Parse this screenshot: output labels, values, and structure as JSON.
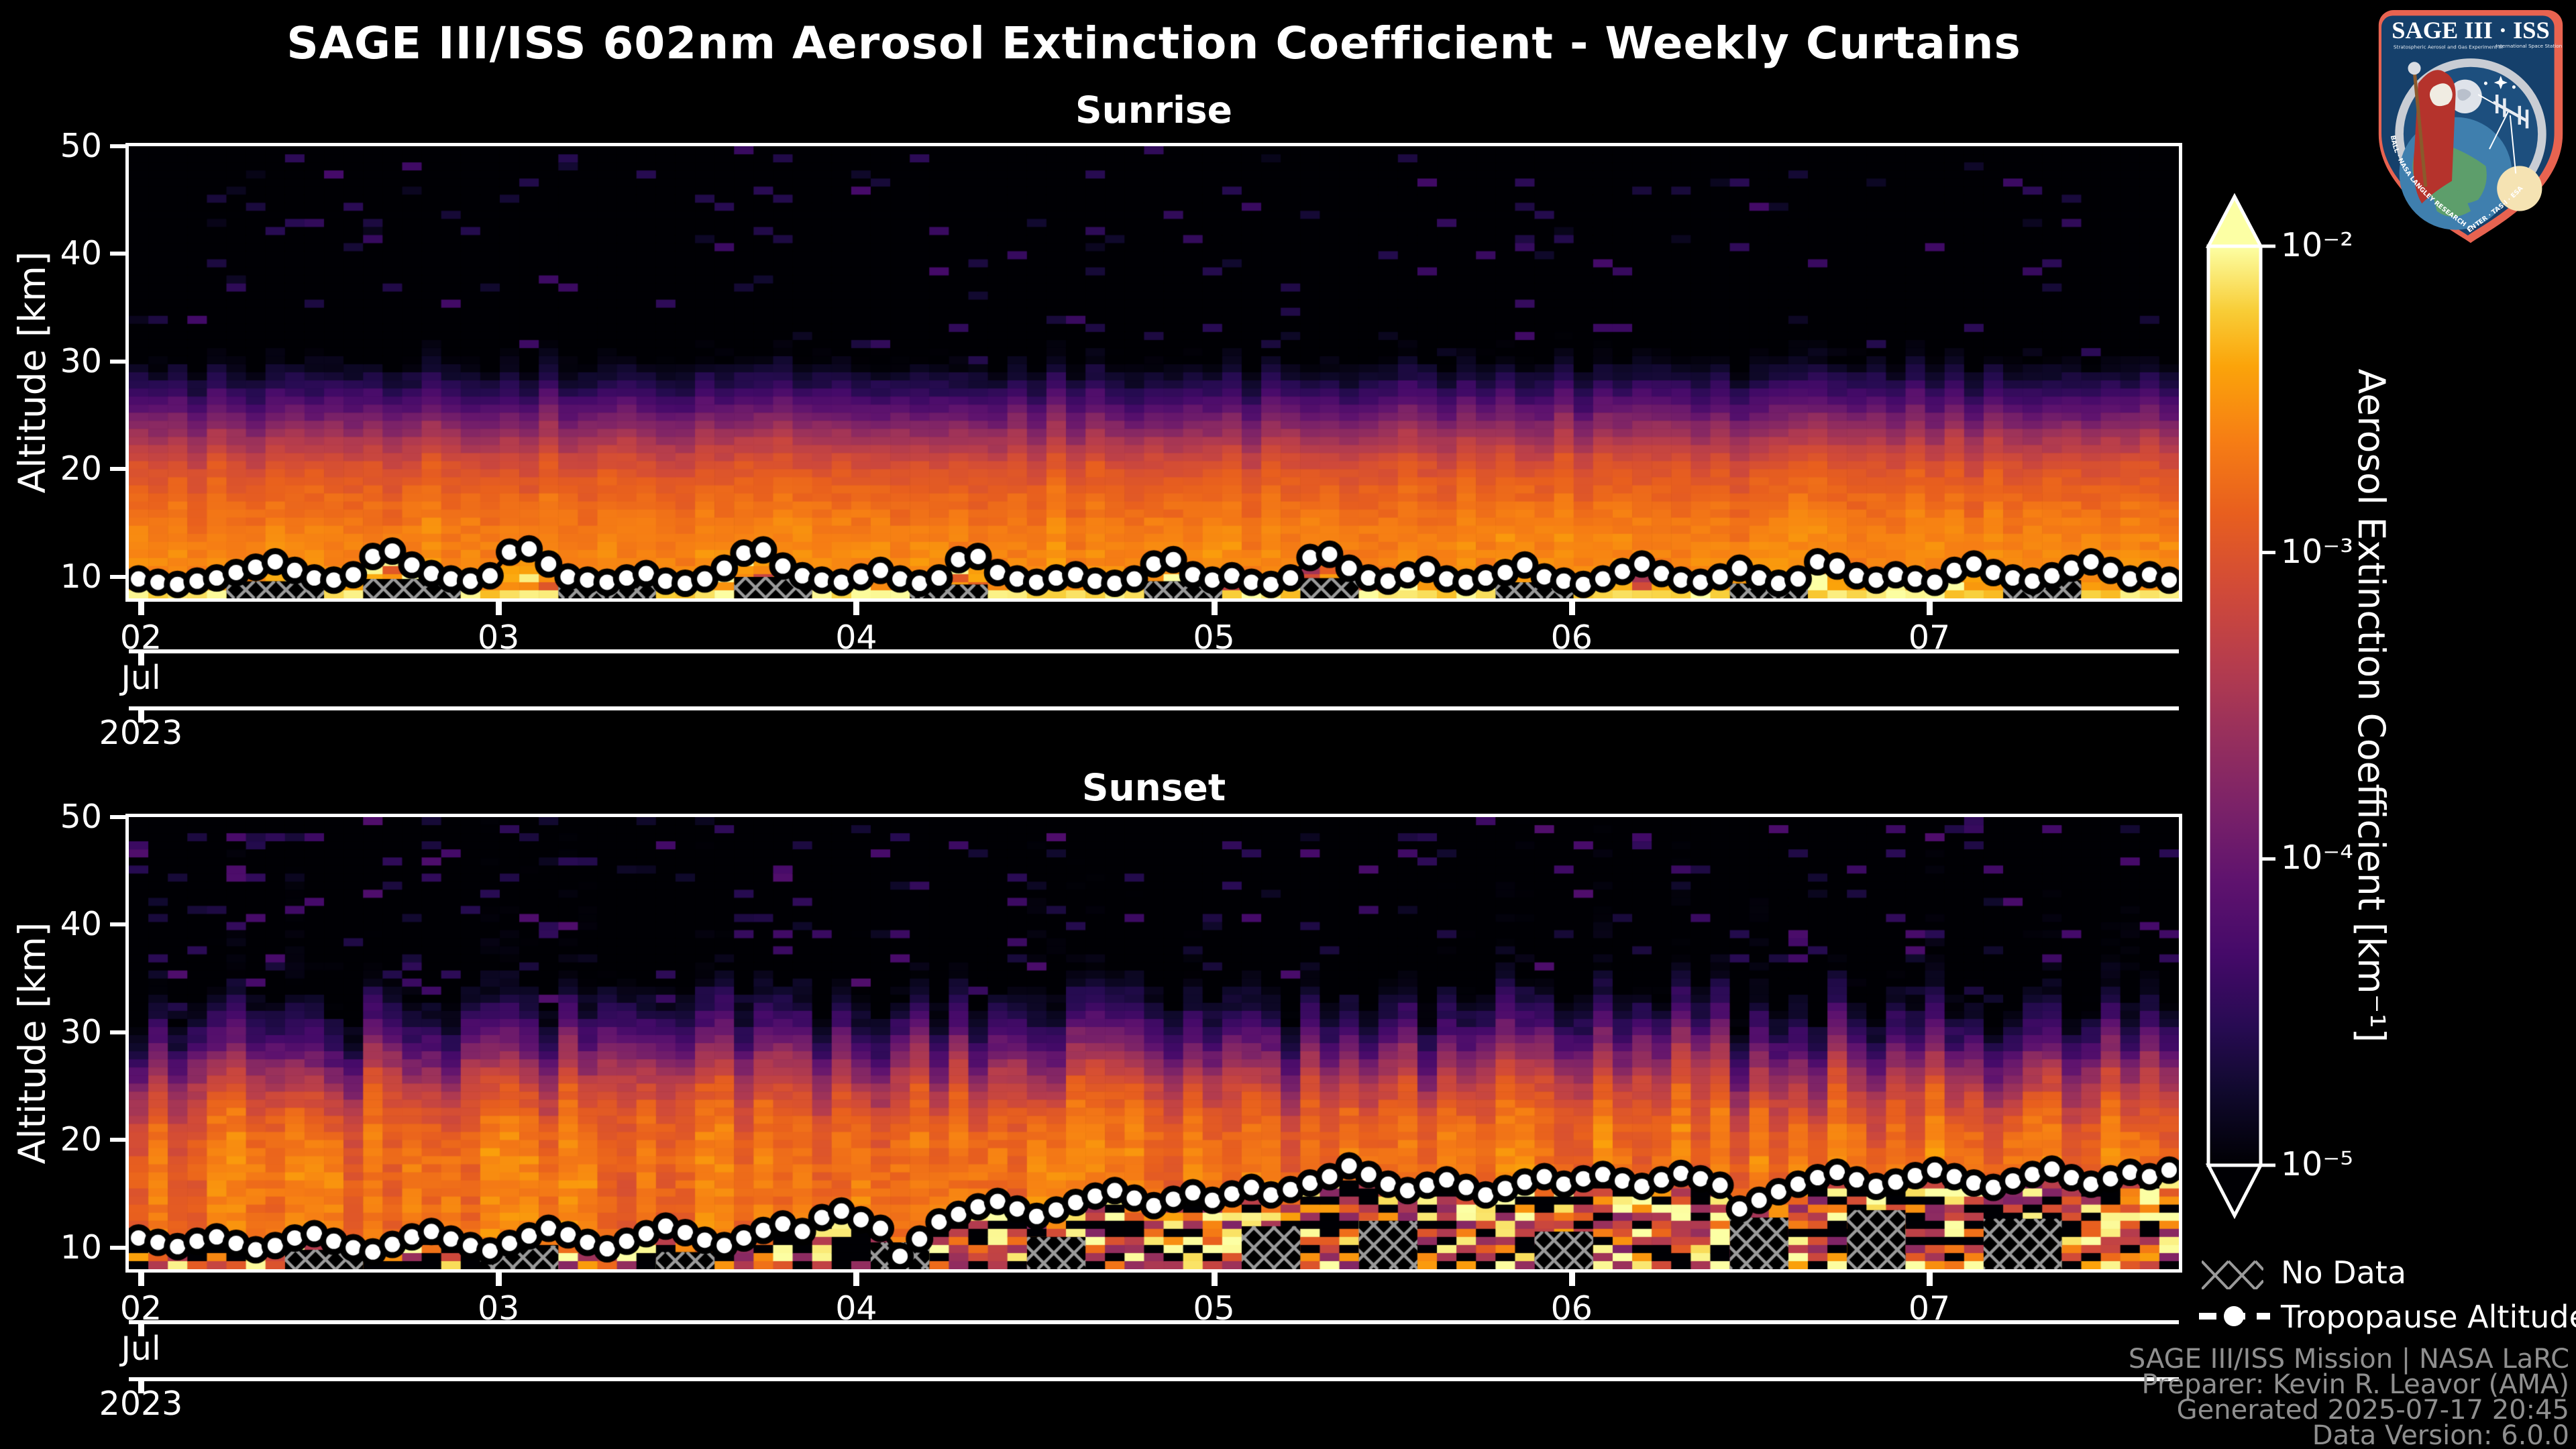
{
  "title": "SAGE III/ISS 602nm Aerosol Extinction Coefficient - Weekly Curtains",
  "colors": {
    "background": "#000000",
    "axis": "#ffffff",
    "credits_text": "#8f8f8f",
    "hatch": "#9a9a9a",
    "tropopause_marker_fill": "#ffffff",
    "tropopause_marker_edge": "#000000",
    "inferno_stops": [
      [
        0.0,
        "#000004"
      ],
      [
        0.08,
        "#10092d"
      ],
      [
        0.15,
        "#270b52"
      ],
      [
        0.23,
        "#450a69"
      ],
      [
        0.31,
        "#5f136e"
      ],
      [
        0.39,
        "#7b2268"
      ],
      [
        0.47,
        "#98305c"
      ],
      [
        0.55,
        "#b73d4c"
      ],
      [
        0.63,
        "#d24b37"
      ],
      [
        0.71,
        "#e85f1e"
      ],
      [
        0.79,
        "#f67e14"
      ],
      [
        0.87,
        "#fba40a"
      ],
      [
        0.93,
        "#f8cd37"
      ],
      [
        1.0,
        "#fcffa4"
      ]
    ]
  },
  "colorbar": {
    "label": "Aerosol Extinction Coefficient [km⁻¹]",
    "scale": "log",
    "min_exp": -5,
    "max_exp": -2,
    "ticks": [
      {
        "label": "10⁻²",
        "exp": -2
      },
      {
        "label": "10⁻³",
        "exp": -3
      },
      {
        "label": "10⁻⁴",
        "exp": -4
      },
      {
        "label": "10⁻⁵",
        "exp": -5
      }
    ]
  },
  "legend": {
    "no_data": "No Data",
    "tropopause": "Tropopause Altitude"
  },
  "credits": [
    "SAGE III/ISS Mission | NASA LaRC",
    "Preparer: Kevin R. Leavor (AMA)",
    "Generated 2025-07-17 20:45",
    "Data Version: 6.0.0"
  ],
  "logo": {
    "title": "SAGE III · ISS",
    "sub_left": "Stratospheric Aerosol and Gas Experiment III",
    "sub_right": "International Space Station",
    "rim_text": "BALL · NASA LANGLEY RESEARCH CENTER · TAS-I · ESA"
  },
  "chart_data": [
    {
      "type": "heatmap",
      "title": "Sunrise",
      "ylabel": "Altitude [km]",
      "ylim": [
        8,
        50
      ],
      "yticks": [
        50,
        40,
        30,
        20,
        10
      ],
      "xticks": [
        "02",
        "03",
        "04",
        "05",
        "06",
        "07"
      ],
      "x_month": "Jul",
      "x_year": "2023",
      "n_cols": 105,
      "color_scale": {
        "type": "log",
        "min": 1e-05,
        "max": 0.01,
        "colormap": "inferno"
      },
      "tropopause_km": [
        9.8,
        9.5,
        9.3,
        9.6,
        9.9,
        10.4,
        10.9,
        11.4,
        10.6,
        9.9,
        9.7,
        10.2,
        11.9,
        12.4,
        11.1,
        10.3,
        9.8,
        9.6,
        10.1,
        12.3,
        12.6,
        11.2,
        10.0,
        9.7,
        9.5,
        9.9,
        10.3,
        9.6,
        9.4,
        9.8,
        10.8,
        12.2,
        12.5,
        11.0,
        10.1,
        9.7,
        9.5,
        10.0,
        10.6,
        9.8,
        9.4,
        9.9,
        11.6,
        11.9,
        10.4,
        9.8,
        9.5,
        9.9,
        10.2,
        9.6,
        9.4,
        9.8,
        11.2,
        11.6,
        10.2,
        9.7,
        10.1,
        9.5,
        9.3,
        9.9,
        11.8,
        12.1,
        10.8,
        9.9,
        9.6,
        10.2,
        10.7,
        9.8,
        9.5,
        9.9,
        10.4,
        11.1,
        10.0,
        9.6,
        9.3,
        9.8,
        10.5,
        11.2,
        10.3,
        9.7,
        9.5,
        10.0,
        10.8,
        9.9,
        9.4,
        9.8,
        11.4,
        11.0,
        10.1,
        9.7,
        10.2,
        9.8,
        9.5,
        10.6,
        11.2,
        10.4,
        9.9,
        9.6,
        10.1,
        10.8,
        11.4,
        10.6,
        9.8,
        10.2,
        9.7
      ],
      "no_data_segments": [
        [
          5,
          9,
          9.6
        ],
        [
          12,
          16,
          9.8
        ],
        [
          22,
          26,
          9.4
        ],
        [
          31,
          34,
          10.0
        ],
        [
          40,
          43,
          9.3
        ],
        [
          52,
          55,
          9.6
        ],
        [
          60,
          62,
          9.9
        ],
        [
          70,
          73,
          9.5
        ],
        [
          82,
          85,
          9.4
        ],
        [
          96,
          99,
          9.7
        ]
      ],
      "profile_log10": [
        [
          8,
          -2.35
        ],
        [
          9,
          -2.45
        ],
        [
          10,
          -2.55
        ],
        [
          14,
          -2.62
        ],
        [
          17,
          -2.78
        ],
        [
          20,
          -3.0
        ],
        [
          22,
          -3.3
        ],
        [
          24,
          -3.7
        ],
        [
          26,
          -4.15
        ],
        [
          28,
          -4.6
        ],
        [
          30,
          -4.95
        ],
        [
          32,
          -5.15
        ],
        [
          50,
          -5.3
        ]
      ],
      "synth": {
        "seed": 11,
        "row_km": 0.75,
        "cell_noise": 0.09,
        "col_jitter": 0.07,
        "col_shift_km": 0.8,
        "speckle_prob": 0.055,
        "speckle_log10": [
          -4.9,
          -4.3
        ],
        "subtrop": "bright"
      }
    },
    {
      "type": "heatmap",
      "title": "Sunset",
      "ylabel": "Altitude [km]",
      "ylim": [
        8,
        50
      ],
      "yticks": [
        50,
        40,
        30,
        20,
        10
      ],
      "xticks": [
        "02",
        "03",
        "04",
        "05",
        "06",
        "07"
      ],
      "x_month": "Jul",
      "x_year": "2023",
      "n_cols": 105,
      "color_scale": {
        "type": "log",
        "min": 1e-05,
        "max": 0.01,
        "colormap": "inferno"
      },
      "tropopause_km": [
        10.9,
        10.5,
        10.1,
        10.6,
        11.0,
        10.4,
        9.8,
        10.2,
        10.9,
        11.3,
        10.6,
        10.0,
        9.6,
        10.3,
        11.0,
        11.5,
        10.8,
        10.2,
        9.7,
        10.4,
        11.1,
        11.8,
        11.2,
        10.5,
        9.9,
        10.6,
        11.3,
        12.0,
        11.4,
        10.7,
        10.2,
        10.9,
        11.6,
        12.2,
        11.5,
        12.8,
        13.4,
        12.6,
        11.8,
        9.2,
        10.8,
        12.4,
        13.1,
        13.8,
        14.3,
        13.6,
        12.9,
        13.5,
        14.2,
        14.8,
        15.3,
        14.6,
        13.9,
        14.5,
        15.1,
        14.4,
        15.0,
        15.6,
        14.9,
        15.4,
        16.0,
        16.6,
        17.6,
        16.8,
        15.9,
        15.3,
        15.8,
        16.3,
        15.6,
        14.9,
        15.5,
        16.1,
        16.6,
        15.9,
        16.4,
        16.8,
        16.2,
        15.7,
        16.3,
        16.9,
        16.4,
        15.8,
        13.6,
        14.4,
        15.2,
        15.9,
        16.5,
        17.0,
        16.3,
        15.7,
        16.1,
        16.7,
        17.2,
        16.6,
        16.0,
        15.6,
        16.2,
        16.8,
        17.3,
        16.5,
        15.9,
        16.4,
        17.0,
        16.6,
        17.2
      ],
      "no_data_segments": [
        [
          8,
          11,
          9.8
        ],
        [
          18,
          21,
          10.2
        ],
        [
          27,
          29,
          9.6
        ],
        [
          38,
          40,
          10.5
        ],
        [
          46,
          48,
          11.0
        ],
        [
          57,
          59,
          12.0
        ],
        [
          63,
          65,
          12.5
        ],
        [
          72,
          74,
          11.5
        ],
        [
          82,
          84,
          12.8
        ],
        [
          88,
          90,
          13.5
        ],
        [
          95,
          98,
          12.7
        ]
      ],
      "profile_log10": [
        [
          8,
          -2.6
        ],
        [
          10,
          -2.7
        ],
        [
          14,
          -2.75
        ],
        [
          18,
          -2.72
        ],
        [
          22,
          -2.9
        ],
        [
          24,
          -3.15
        ],
        [
          26,
          -3.5
        ],
        [
          28,
          -3.95
        ],
        [
          30,
          -4.4
        ],
        [
          32,
          -4.75
        ],
        [
          34,
          -5.05
        ],
        [
          36,
          -5.2
        ],
        [
          50,
          -5.3
        ]
      ],
      "synth": {
        "seed": 23,
        "row_km": 0.75,
        "cell_noise": 0.13,
        "col_jitter": 0.2,
        "col_shift_km": 2.2,
        "speckle_prob": 0.09,
        "speckle_log10": [
          -4.85,
          -4.2
        ],
        "subtrop": "mixed"
      }
    }
  ]
}
